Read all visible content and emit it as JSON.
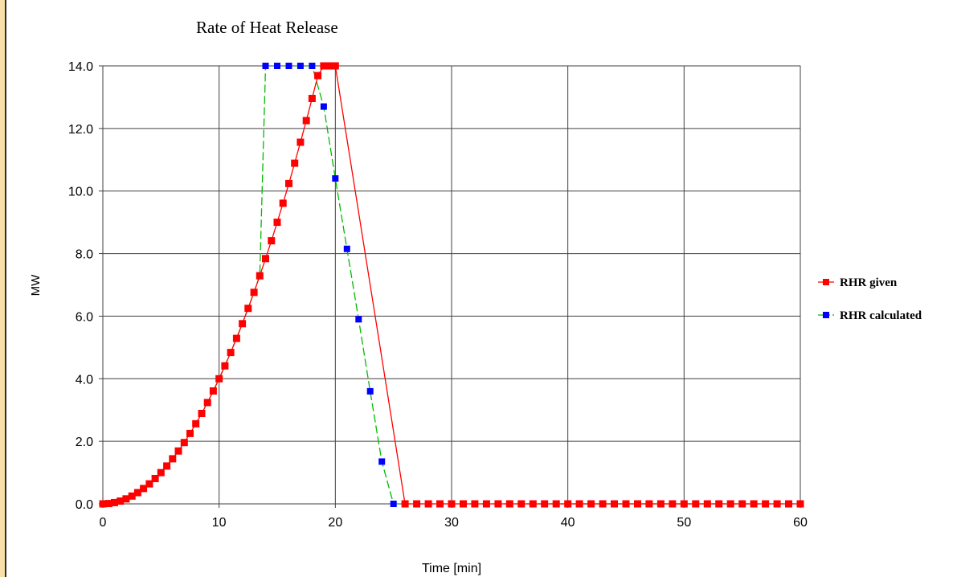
{
  "chart_data": {
    "type": "line",
    "title": "Rate of Heat Release",
    "xlabel": "Time [min]",
    "ylabel": "MW",
    "xlim": [
      0,
      60
    ],
    "ylim": [
      0,
      14
    ],
    "x_ticks": [
      0,
      10,
      20,
      30,
      40,
      50,
      60
    ],
    "y_ticks": [
      0,
      2,
      4,
      6,
      8,
      10,
      12,
      14
    ],
    "x_tick_labels": [
      "0",
      "10",
      "20",
      "30",
      "40",
      "50",
      "60"
    ],
    "y_tick_labels": [
      "0.0",
      "2.0",
      "4.0",
      "6.0",
      "8.0",
      "10.0",
      "12.0",
      "14.0"
    ],
    "grid": true,
    "legend_position": "right",
    "series": [
      {
        "name": "RHR given",
        "color": "#ff0000",
        "line_style": "solid",
        "marker": "square",
        "x": [
          0,
          0.5,
          1,
          1.5,
          2,
          2.5,
          3,
          3.5,
          4,
          4.5,
          5,
          5.5,
          6,
          6.5,
          7,
          7.5,
          8,
          8.5,
          9,
          9.5,
          10,
          10.5,
          11,
          11.5,
          12,
          12.5,
          13,
          13.5,
          14,
          14.5,
          15,
          15.5,
          16,
          16.5,
          17,
          17.5,
          18,
          18.5,
          19,
          19.5,
          20,
          26,
          27,
          28,
          29,
          30,
          31,
          32,
          33,
          34,
          35,
          36,
          37,
          38,
          39,
          40,
          41,
          42,
          43,
          44,
          45,
          46,
          47,
          48,
          49,
          50,
          51,
          52,
          53,
          54,
          55,
          56,
          57,
          58,
          59,
          60
        ],
        "y": [
          0,
          0.01,
          0.04,
          0.09,
          0.16,
          0.25,
          0.36,
          0.49,
          0.64,
          0.81,
          1.0,
          1.21,
          1.44,
          1.69,
          1.96,
          2.25,
          2.56,
          2.89,
          3.24,
          3.61,
          4.0,
          4.41,
          4.84,
          5.29,
          5.76,
          6.25,
          6.76,
          7.29,
          7.84,
          8.41,
          9.0,
          9.61,
          10.24,
          10.89,
          11.56,
          12.25,
          12.96,
          13.69,
          14.0,
          14.0,
          14.0,
          0,
          0,
          0,
          0,
          0,
          0,
          0,
          0,
          0,
          0,
          0,
          0,
          0,
          0,
          0,
          0,
          0,
          0,
          0,
          0,
          0,
          0,
          0,
          0,
          0,
          0,
          0,
          0,
          0,
          0,
          0,
          0,
          0,
          0,
          0
        ]
      },
      {
        "name": "RHR calculated",
        "color": "#0000ff",
        "line_color": "#00bb00",
        "line_style": "dashed",
        "marker": "square",
        "x": [
          0,
          1,
          2,
          3,
          4,
          5,
          6,
          7,
          8,
          9,
          10,
          11,
          12,
          13,
          13.5,
          14,
          15,
          16,
          17,
          18,
          19,
          20,
          21,
          22,
          23,
          24,
          25,
          26,
          27,
          28,
          29,
          30,
          31,
          32,
          33,
          34,
          35,
          36,
          37,
          38,
          39,
          40,
          41,
          42,
          43,
          44,
          45,
          46,
          47,
          48,
          49,
          50,
          51,
          52,
          53,
          54,
          55,
          56,
          57,
          58,
          59,
          60
        ],
        "y": [
          0,
          0.04,
          0.16,
          0.36,
          0.64,
          1.0,
          1.44,
          1.96,
          2.56,
          3.24,
          4.0,
          4.84,
          5.76,
          6.76,
          7.3,
          14.0,
          14.0,
          14.0,
          14.0,
          14.0,
          12.7,
          10.4,
          8.15,
          5.9,
          3.6,
          1.35,
          0,
          0,
          0,
          0,
          0,
          0,
          0,
          0,
          0,
          0,
          0,
          0,
          0,
          0,
          0,
          0,
          0,
          0,
          0,
          0,
          0,
          0,
          0,
          0,
          0,
          0,
          0,
          0,
          0,
          0,
          0,
          0,
          0,
          0,
          0,
          0
        ]
      }
    ]
  }
}
